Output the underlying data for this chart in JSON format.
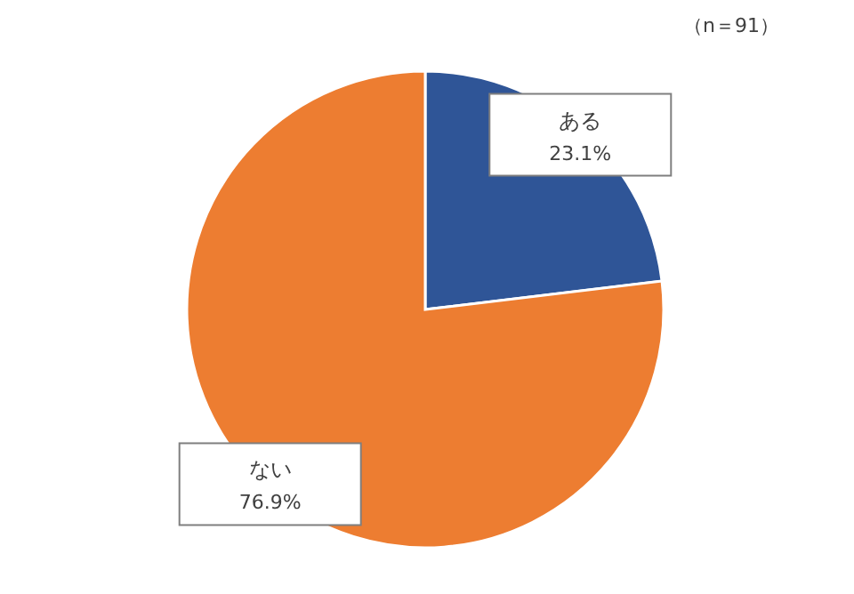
{
  "chart_data": {
    "type": "pie",
    "categories": [
      "ある",
      "ない"
    ],
    "values": [
      23.1,
      76.9
    ],
    "colors": [
      "#2f5597",
      "#ed7d31"
    ],
    "value_labels": [
      "23.1%",
      "76.9%"
    ],
    "annotations": [
      "（n＝91）"
    ]
  }
}
